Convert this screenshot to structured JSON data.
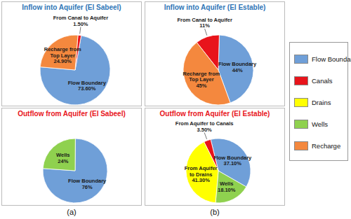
{
  "chart_data": [
    {
      "type": "pie",
      "title": "Inflow into Aquifer (El Sabeel)",
      "categories": [
        "Flow Boundary",
        "From Canal to Aquifer",
        "Recharge from Top Layer"
      ],
      "values": [
        73.6,
        1.5,
        24.9
      ],
      "value_labels": [
        "73.60%",
        "1.50%",
        "24.90%"
      ],
      "colors": [
        "#6f9fd8",
        "#e8141b",
        "#f4883e"
      ],
      "data_labels": true
    },
    {
      "type": "pie",
      "title": "Outflow from Aquifer (El Sabeel)",
      "categories": [
        "Flow Boundary",
        "Wells"
      ],
      "values": [
        76,
        24
      ],
      "value_labels": [
        "76%",
        "24%"
      ],
      "colors": [
        "#6f9fd8",
        "#8fd14f"
      ],
      "data_labels": true
    },
    {
      "type": "pie",
      "title": "Inflow into Aquifer (El Estable)",
      "categories": [
        "Flow Boundary",
        "From Canal to Aquifer",
        "Recharge from Top Layer"
      ],
      "values": [
        44,
        11,
        45
      ],
      "value_labels": [
        "44%",
        "11%",
        "45%"
      ],
      "colors": [
        "#6f9fd8",
        "#e8141b",
        "#f4883e"
      ],
      "data_labels": true
    },
    {
      "type": "pie",
      "title": "Outflow from Aquifer (El Estable)",
      "categories": [
        "Wells",
        "Flow Boundary",
        "From Aquifer to Canals",
        "From Aquifer to Drains"
      ],
      "values": [
        18.1,
        37.1,
        3.5,
        41.3
      ],
      "value_labels": [
        "18.10%",
        "37.10%",
        "3.50%",
        "41.30%"
      ],
      "colors": [
        "#8fd14f",
        "#6f9fd8",
        "#e8141b",
        "#ffff00"
      ],
      "data_labels": true
    }
  ],
  "key": [
    {
      "name": "Flow Boundary",
      "color": "#6f9fd8"
    },
    {
      "name": "Canals",
      "color": "#e8141b"
    },
    {
      "name": "Drains",
      "color": "#ffff00"
    },
    {
      "name": "Wells",
      "color": "#8fd14f"
    },
    {
      "name": "Recharge",
      "color": "#f4883e"
    }
  ],
  "panels": [
    "(a)",
    "(b)"
  ]
}
